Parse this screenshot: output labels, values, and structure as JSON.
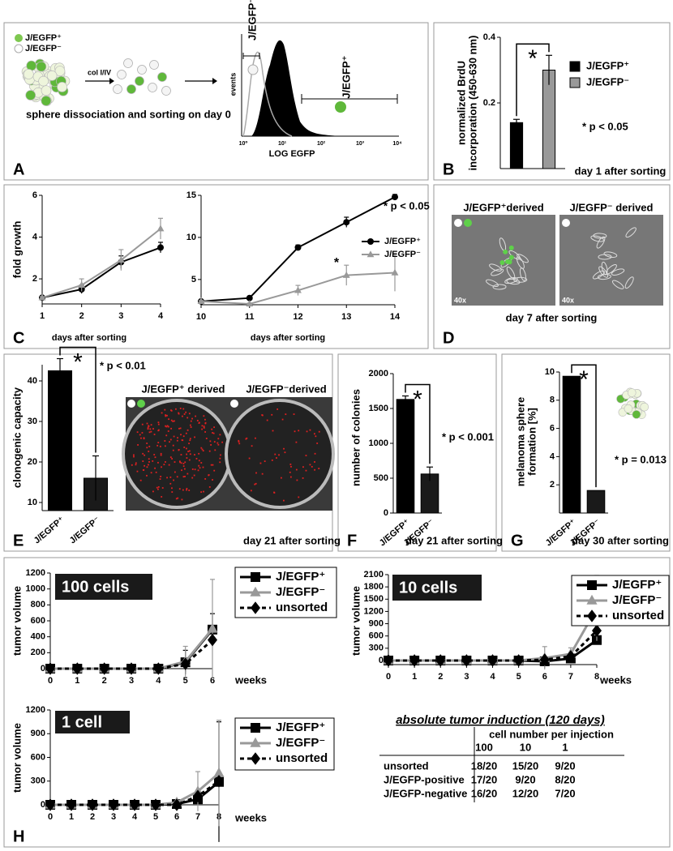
{
  "panel_labels": [
    "A",
    "B",
    "C",
    "D",
    "E",
    "F",
    "G",
    "H"
  ],
  "diagram_A": {
    "legend": [
      "J/EGFP⁺",
      "J/EGFP⁻"
    ],
    "enzyme": "col I/IV",
    "caption": "sphere dissociation and sorting on day 0",
    "hist_ylabel": "events",
    "hist_xlabel": "LOG EGFP",
    "gate_neg": "J/EGFP⁻",
    "gate_pos": "J/EGFP⁺",
    "hist_xticks": [
      "10⁰",
      "10¹",
      "10²",
      "10³",
      "10⁴"
    ]
  },
  "panel_D": {
    "titles": [
      "J/EGFP⁺derived",
      "J/EGFP⁻ derived"
    ],
    "magnification": [
      "40x",
      "40x"
    ],
    "note": "day 7 after sorting"
  },
  "panel_E": {
    "titles": [
      "J/EGFP⁺ derived",
      "J/EGFP⁻derived"
    ]
  },
  "table": {
    "title": "absolute tumor induction (120 days)",
    "group_header": "cell number per injection",
    "columns": [
      "100",
      "10",
      "1"
    ],
    "rows": [
      [
        "unsorted",
        "18/20",
        "15/20",
        "9/20"
      ],
      [
        "J/EGFP-positive",
        "17/20",
        "9/20",
        "8/20"
      ],
      [
        "J/EGFP-negative",
        "16/20",
        "12/20",
        "7/20"
      ]
    ]
  },
  "chart_data": [
    {
      "type": "bar",
      "ylabel": [
        "normalized BrdU",
        "incorporation (450-630 nm)"
      ],
      "series": [
        {
          "name": "J/EGFP⁺",
          "color": "#000000",
          "values": [
            0.14
          ],
          "errors": [
            0.01
          ]
        },
        {
          "name": "J/EGFP⁻",
          "color": "#999999",
          "values": [
            0.3
          ],
          "errors": [
            0.045
          ]
        }
      ],
      "ylim": [
        0,
        0.4
      ],
      "yticks": [
        0.2,
        0.4
      ],
      "significance": "*",
      "annotation": "* p < 0.05",
      "note": "day 1 after sorting"
    },
    {
      "type": "line",
      "x": [
        1,
        2,
        3,
        4
      ],
      "xlim": [
        1,
        4
      ],
      "xticks": [
        1,
        2,
        3,
        4
      ],
      "ylim": [
        0.8,
        6
      ],
      "yticks": [
        2,
        4,
        6
      ],
      "ylabel": "fold growth",
      "xlabel": "days after sorting",
      "series": [
        {
          "color": "#000000",
          "marker": "circle",
          "values": [
            1.1,
            1.5,
            2.8,
            3.5
          ],
          "errors": [
            0.05,
            0.2,
            0.3,
            0.25
          ]
        },
        {
          "color": "#999999",
          "marker": "triangle",
          "values": [
            1.1,
            1.7,
            2.9,
            4.4
          ],
          "errors": [
            0.05,
            0.3,
            0.5,
            0.5
          ]
        }
      ]
    },
    {
      "type": "line",
      "x": [
        10,
        11,
        12,
        13,
        14
      ],
      "xlim": [
        10,
        14
      ],
      "xticks": [
        10,
        11,
        12,
        13,
        14
      ],
      "ylim": [
        2,
        15
      ],
      "yticks": [
        5,
        10,
        15
      ],
      "xlabel": "days after sorting",
      "annotation": "* p < 0.05",
      "significance": "*",
      "series": [
        {
          "name": "J/EGFP⁺",
          "color": "#000000",
          "marker": "circle",
          "values": [
            2.4,
            2.8,
            8.8,
            11.8,
            14.8
          ],
          "errors": [
            0.1,
            0.1,
            0.3,
            0.6,
            0.3
          ]
        },
        {
          "name": "J/EGFP⁻",
          "color": "#999999",
          "marker": "triangle",
          "values": [
            2.4,
            2.1,
            3.7,
            5.5,
            5.8
          ],
          "errors": [
            0.1,
            0.1,
            0.6,
            1.2,
            2.2
          ]
        }
      ]
    },
    {
      "type": "bar",
      "ylabel": "clonogenic capacity",
      "categories": [
        "J/EGFP⁺",
        "J/EGFP⁻"
      ],
      "values": [
        42.5,
        16
      ],
      "errors": [
        3,
        5.5
      ],
      "colors": [
        "#000000",
        "#1a1a1a"
      ],
      "ylim": [
        8,
        44
      ],
      "yticks": [
        10,
        20,
        30,
        40
      ],
      "significance": "*",
      "annotation": "* p < 0.01",
      "note": "day 21 after sorting"
    },
    {
      "type": "bar",
      "ylabel": "number of colonies",
      "categories": [
        "J/EGFP⁺",
        "J/EGFP⁻"
      ],
      "values": [
        1630,
        560
      ],
      "errors": [
        50,
        100
      ],
      "colors": [
        "#000000",
        "#1a1a1a"
      ],
      "ylim": [
        0,
        2000
      ],
      "yticks": [
        0,
        500,
        1000,
        1500,
        2000
      ],
      "significance": "*",
      "annotation": "* p < 0.001",
      "note": "day 21 after sorting"
    },
    {
      "type": "bar",
      "ylabel": [
        "melanoma sphere",
        "formation [%]"
      ],
      "categories": [
        "J/EGFP⁺",
        "J/EGFP⁻"
      ],
      "values": [
        9.7,
        1.6
      ],
      "colors": [
        "#000000",
        "#1a1a1a"
      ],
      "ylim": [
        0,
        10
      ],
      "yticks": [
        2,
        4,
        6,
        8,
        10
      ],
      "significance": "*",
      "annotation": "* p = 0.013",
      "note": "day 30 after sorting"
    },
    {
      "type": "line",
      "label": "100 cells",
      "x": [
        0,
        1,
        2,
        3,
        4,
        5,
        6
      ],
      "xlim": [
        0,
        6
      ],
      "xticks": [
        0,
        1,
        2,
        3,
        4,
        5,
        6
      ],
      "ylim": [
        0,
        1200
      ],
      "yticks": [
        0,
        200,
        400,
        600,
        800,
        1000,
        1200
      ],
      "ylabel": "tumor volume",
      "xlabel": "weeks",
      "series": [
        {
          "name": "J/EGFP⁺",
          "color": "#000000",
          "marker": "square",
          "values": [
            0,
            0,
            0,
            0,
            0,
            80,
            490
          ],
          "errors": [
            null,
            null,
            null,
            null,
            null,
            150,
            200
          ]
        },
        {
          "name": "J/EGFP⁻",
          "color": "#999999",
          "marker": "triangle",
          "values": [
            0,
            0,
            0,
            0,
            0,
            90,
            500
          ],
          "errors": [
            null,
            null,
            null,
            null,
            null,
            190,
            620
          ]
        },
        {
          "name": "unsorted",
          "color": "#000000",
          "marker": "diamond",
          "dash": true,
          "values": [
            0,
            0,
            0,
            0,
            0,
            60,
            360
          ]
        }
      ]
    },
    {
      "type": "line",
      "label": "10 cells",
      "x": [
        0,
        1,
        2,
        3,
        4,
        5,
        6,
        7,
        8
      ],
      "xlim": [
        0,
        8
      ],
      "xticks": [
        0,
        1,
        2,
        3,
        4,
        5,
        6,
        7,
        8
      ],
      "ylim": [
        -100,
        2100
      ],
      "yticks": [
        0,
        300,
        600,
        900,
        1200,
        1500,
        1800,
        2100
      ],
      "ylabel": "tumor volume",
      "xlabel": "weeks",
      "series": [
        {
          "name": "J/EGFP⁺",
          "color": "#000000",
          "marker": "square",
          "values": [
            0,
            0,
            0,
            0,
            0,
            0,
            -20,
            50,
            500
          ]
        },
        {
          "name": "J/EGFP⁻",
          "color": "#999999",
          "marker": "triangle",
          "values": [
            0,
            0,
            0,
            0,
            0,
            0,
            60,
            160,
            1280
          ],
          "errors": [
            null,
            null,
            null,
            null,
            null,
            null,
            280,
            150,
            800
          ]
        },
        {
          "name": "unsorted",
          "color": "#000000",
          "marker": "diamond",
          "dash": true,
          "values": [
            0,
            0,
            0,
            0,
            0,
            0,
            20,
            100,
            730
          ]
        }
      ]
    },
    {
      "type": "line",
      "label": "1 cell",
      "x": [
        0,
        1,
        2,
        3,
        4,
        5,
        6,
        7,
        8
      ],
      "xlim": [
        0,
        8
      ],
      "xticks": [
        0,
        1,
        2,
        3,
        4,
        5,
        6,
        7,
        8
      ],
      "ylim": [
        0,
        1200
      ],
      "yticks": [
        0,
        300,
        600,
        900,
        1200
      ],
      "ylabel": "tumor volume",
      "xlabel": "weeks",
      "series": [
        {
          "name": "J/EGFP⁺",
          "color": "#000000",
          "marker": "square",
          "values": [
            0,
            0,
            0,
            0,
            0,
            0,
            10,
            70,
            290
          ],
          "errors": [
            null,
            null,
            null,
            null,
            null,
            null,
            null,
            null,
            760
          ]
        },
        {
          "name": "J/EGFP⁻",
          "color": "#999999",
          "marker": "triangle",
          "values": [
            0,
            0,
            0,
            0,
            0,
            0,
            30,
            170,
            400
          ],
          "errors": [
            null,
            null,
            null,
            null,
            null,
            null,
            null,
            250,
            670
          ]
        },
        {
          "name": "unsorted",
          "color": "#000000",
          "marker": "diamond",
          "dash": true,
          "values": [
            0,
            0,
            0,
            0,
            0,
            0,
            0,
            110,
            300
          ]
        }
      ]
    }
  ]
}
